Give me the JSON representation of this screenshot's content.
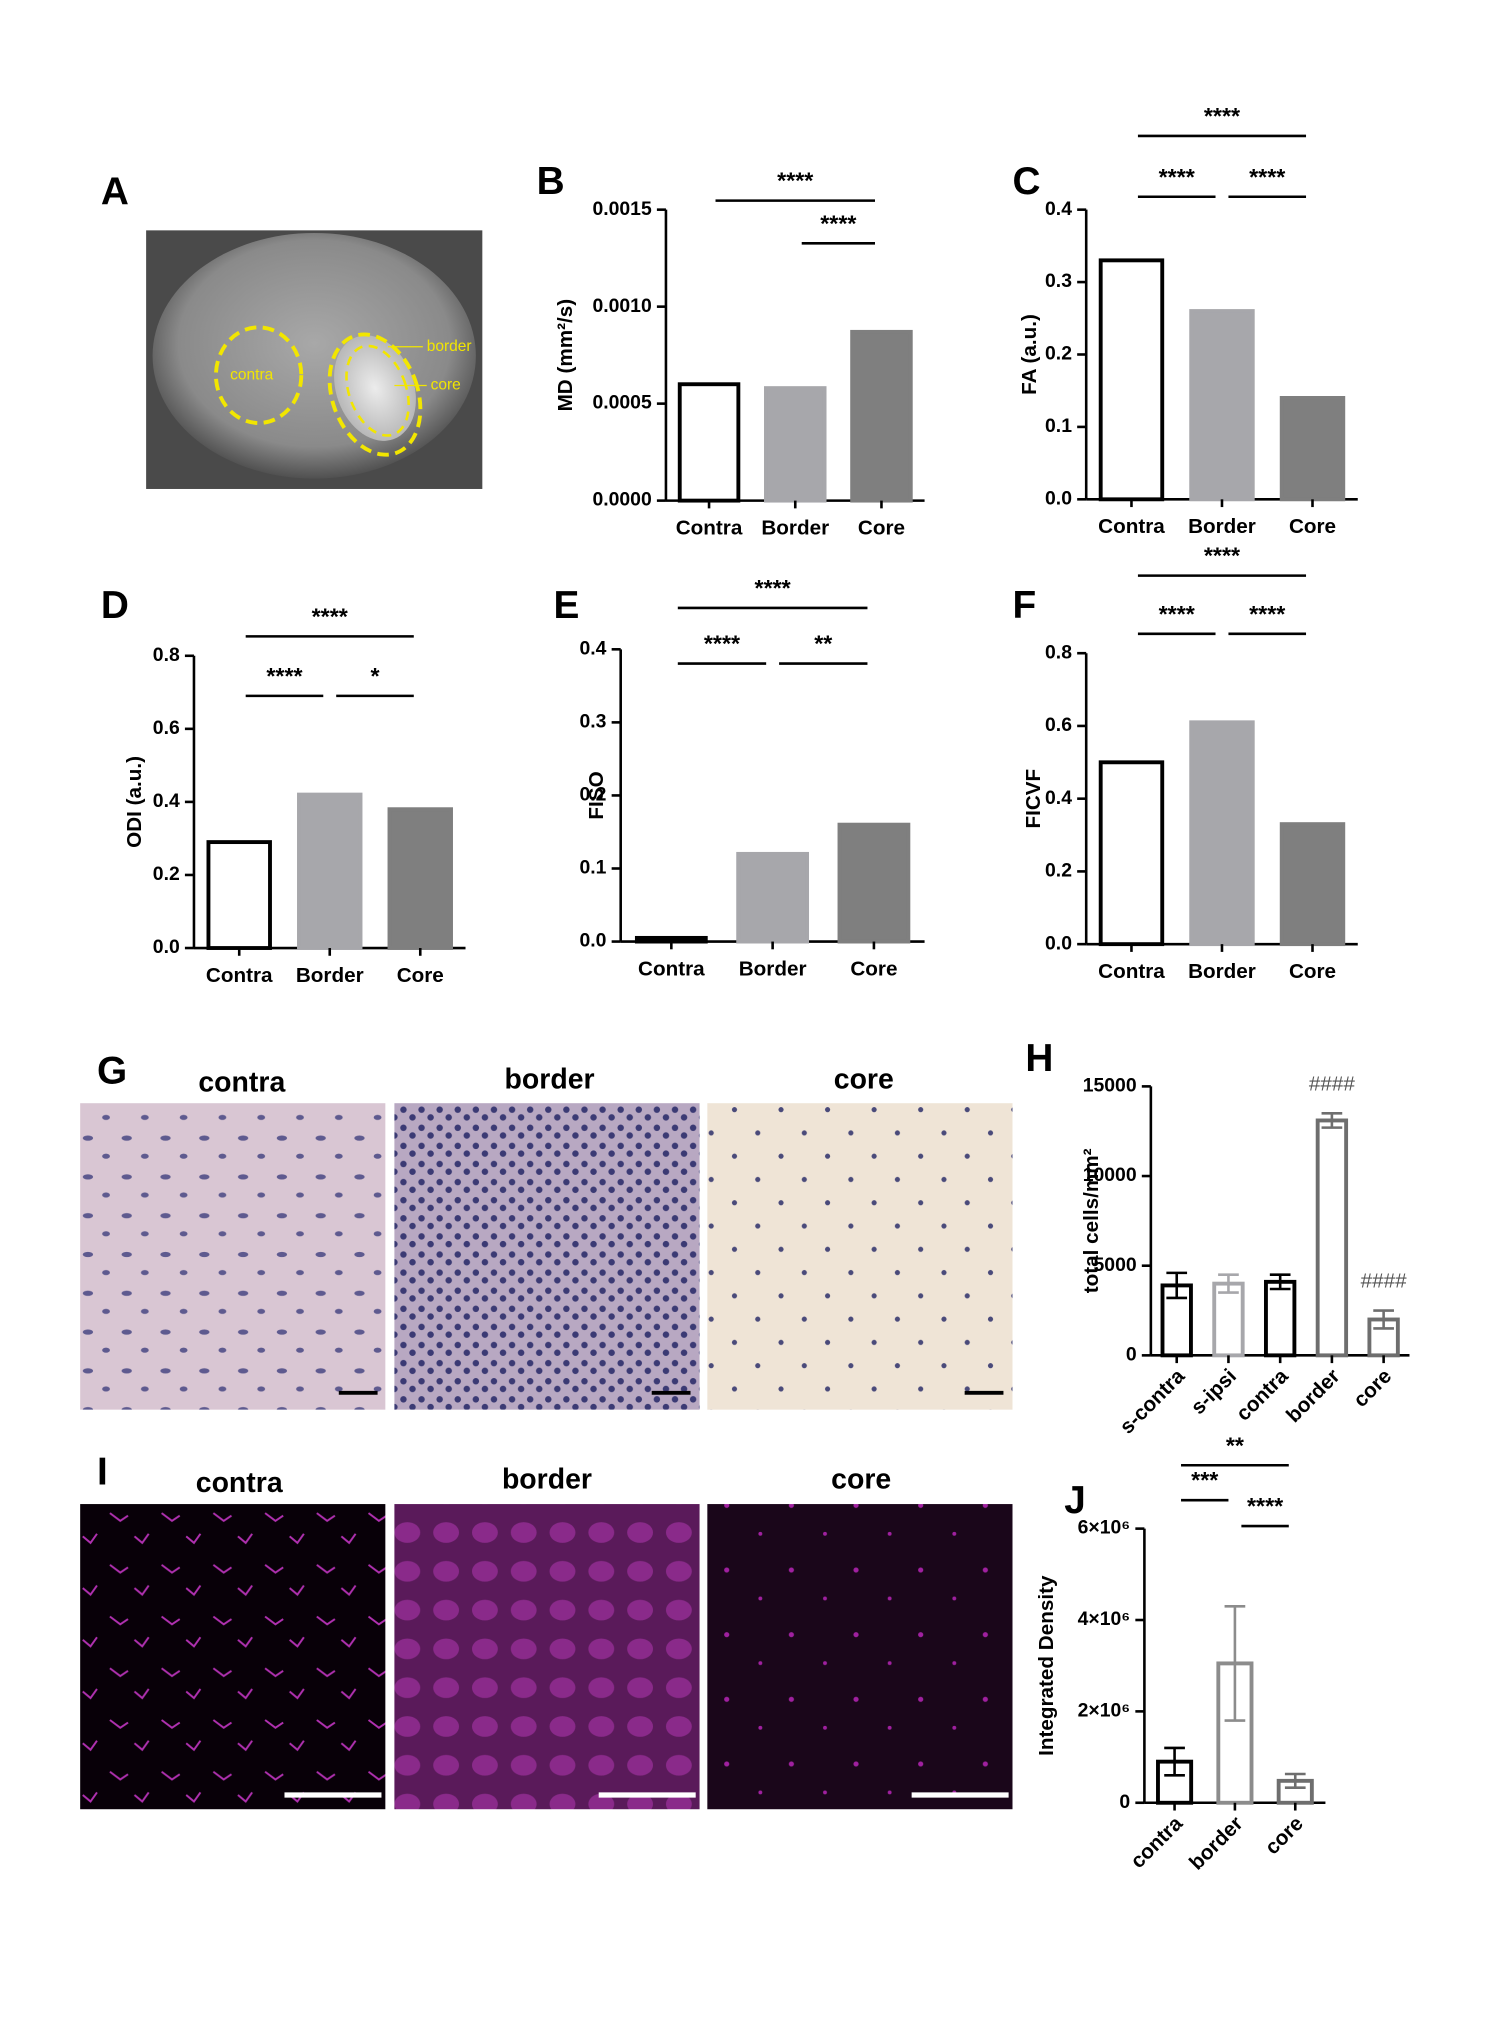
{
  "image_panels": [
    {
      "label": "A",
      "titles": [
        "contra",
        "border",
        "core"
      ]
    },
    {
      "label": "G",
      "titles": [
        "contra",
        "border",
        "core"
      ]
    },
    {
      "label": "I",
      "titles": [
        "contra",
        "border",
        "core"
      ]
    }
  ],
  "chart_data": [
    {
      "type": "bar",
      "label": "B",
      "ylabel": "MD (mm²/s)",
      "categories": [
        "Contra",
        "Border",
        "Core"
      ],
      "values": [
        0.0006,
        0.00058,
        0.00087
      ],
      "fills": [
        "#ffffff",
        "#a7a7ab",
        "#7f7f7f"
      ],
      "strokes": [
        "#000000",
        "#a7a7ab",
        "#7f7f7f"
      ],
      "ylim": [
        0,
        0.0015
      ],
      "yticks": [
        {
          "value": 0,
          "label": "0.0000"
        },
        {
          "value": 0.0005,
          "label": "0.0005"
        },
        {
          "value": 0.001,
          "label": "0.0010"
        },
        {
          "value": 0.0015,
          "label": "0.0015"
        }
      ],
      "comparisons": [
        {
          "pair": [
            "Contra",
            "Core"
          ],
          "label": "****"
        },
        {
          "pair": [
            "Border",
            "Core"
          ],
          "label": "****"
        }
      ]
    },
    {
      "type": "bar",
      "label": "C",
      "ylabel": "FA (a.u.)",
      "categories": [
        "Contra",
        "Border",
        "Core"
      ],
      "values": [
        0.33,
        0.26,
        0.14
      ],
      "fills": [
        "#ffffff",
        "#a7a7ab",
        "#7f7f7f"
      ],
      "strokes": [
        "#000000",
        "#a7a7ab",
        "#7f7f7f"
      ],
      "ylim": [
        0,
        0.4
      ],
      "yticks": [
        {
          "value": 0,
          "label": "0.0"
        },
        0.1,
        0.2,
        0.3,
        0.4
      ],
      "comparisons": [
        {
          "pair": [
            "Contra",
            "Core"
          ],
          "label": "****"
        },
        {
          "pair": [
            "Contra",
            "Border"
          ],
          "label": "****"
        },
        {
          "pair": [
            "Border",
            "Core"
          ],
          "label": "****"
        }
      ]
    },
    {
      "type": "bar",
      "label": "D",
      "ylabel": "ODI (a.u.)",
      "categories": [
        "Contra",
        "Border",
        "Core"
      ],
      "values": [
        0.29,
        0.42,
        0.38
      ],
      "fills": [
        "#ffffff",
        "#a7a7ab",
        "#7f7f7f"
      ],
      "strokes": [
        "#000000",
        "#a7a7ab",
        "#7f7f7f"
      ],
      "ylim": [
        0,
        0.8
      ],
      "yticks": [
        {
          "value": 0,
          "label": "0.0"
        },
        0.2,
        0.4,
        0.6,
        0.8
      ],
      "comparisons": [
        {
          "pair": [
            "Contra",
            "Core"
          ],
          "label": "****"
        },
        {
          "pair": [
            "Contra",
            "Border"
          ],
          "label": "****"
        },
        {
          "pair": [
            "Border",
            "Core"
          ],
          "label": "*"
        }
      ]
    },
    {
      "type": "bar",
      "label": "E",
      "ylabel": "FISO",
      "categories": [
        "Contra",
        "Border",
        "Core"
      ],
      "values": [
        0.005,
        0.12,
        0.16
      ],
      "fills": [
        "#ffffff",
        "#a7a7ab",
        "#7f7f7f"
      ],
      "strokes": [
        "#000000",
        "#a7a7ab",
        "#7f7f7f"
      ],
      "ylim": [
        0,
        0.4
      ],
      "yticks": [
        {
          "value": 0,
          "label": "0.0"
        },
        0.1,
        0.2,
        0.3,
        0.4
      ],
      "comparisons": [
        {
          "pair": [
            "Contra",
            "Core"
          ],
          "label": "****"
        },
        {
          "pair": [
            "Contra",
            "Border"
          ],
          "label": "****"
        },
        {
          "pair": [
            "Border",
            "Core"
          ],
          "label": "**"
        }
      ]
    },
    {
      "type": "bar",
      "label": "F",
      "ylabel": "FICVF",
      "categories": [
        "Contra",
        "Border",
        "Core"
      ],
      "values": [
        0.5,
        0.61,
        0.33
      ],
      "fills": [
        "#ffffff",
        "#a7a7ab",
        "#7f7f7f"
      ],
      "strokes": [
        "#000000",
        "#a7a7ab",
        "#7f7f7f"
      ],
      "ylim": [
        0,
        0.8
      ],
      "yticks": [
        {
          "value": 0,
          "label": "0.0"
        },
        0.2,
        0.4,
        0.6,
        0.8
      ],
      "comparisons": [
        {
          "pair": [
            "Contra",
            "Core"
          ],
          "label": "****"
        },
        {
          "pair": [
            "Contra",
            "Border"
          ],
          "label": "****"
        },
        {
          "pair": [
            "Border",
            "Core"
          ],
          "label": "****"
        }
      ]
    },
    {
      "type": "bar",
      "label": "H",
      "ylabel": "total cells/mm²",
      "categories": [
        "s-contra",
        "s-ipsi",
        "contra",
        "border",
        "core"
      ],
      "values": [
        3900,
        4000,
        4100,
        13100,
        2000
      ],
      "errors": [
        700,
        500,
        400,
        400,
        500
      ],
      "fills": [
        "#ffffff",
        "#ffffff",
        "#ffffff",
        "#ffffff",
        "#ffffff"
      ],
      "strokes": [
        "#000000",
        "#a7a7ab",
        "#000000",
        "#6e6e6e",
        "#6e6e6e"
      ],
      "bar_labels": [
        null,
        null,
        null,
        "####",
        "####"
      ],
      "ylim": [
        0,
        15000
      ],
      "yticks": [
        0,
        5000,
        10000,
        15000
      ]
    },
    {
      "type": "bar",
      "label": "J",
      "ylabel": "Integrated Density",
      "categories": [
        "contra",
        "border",
        "core"
      ],
      "values": [
        900000,
        3050000,
        480000
      ],
      "errors": [
        300000,
        1250000,
        150000
      ],
      "fills": [
        "#ffffff",
        "#ffffff",
        "#ffffff"
      ],
      "strokes": [
        "#000000",
        "#8c8c8c",
        "#6e6e6e"
      ],
      "ylim": [
        0,
        6000000
      ],
      "yticks": [
        0,
        {
          "value": 2000000,
          "label": "2×10⁶"
        },
        {
          "value": 4000000,
          "label": "4×10⁶"
        },
        {
          "value": 6000000,
          "label": "6×10⁶"
        }
      ],
      "comparisons": [
        {
          "pair": [
            "contra",
            "core"
          ],
          "label": "**"
        },
        {
          "pair": [
            "contra",
            "border"
          ],
          "label": "***"
        },
        {
          "pair": [
            "border",
            "core"
          ],
          "label": "****"
        }
      ]
    }
  ]
}
